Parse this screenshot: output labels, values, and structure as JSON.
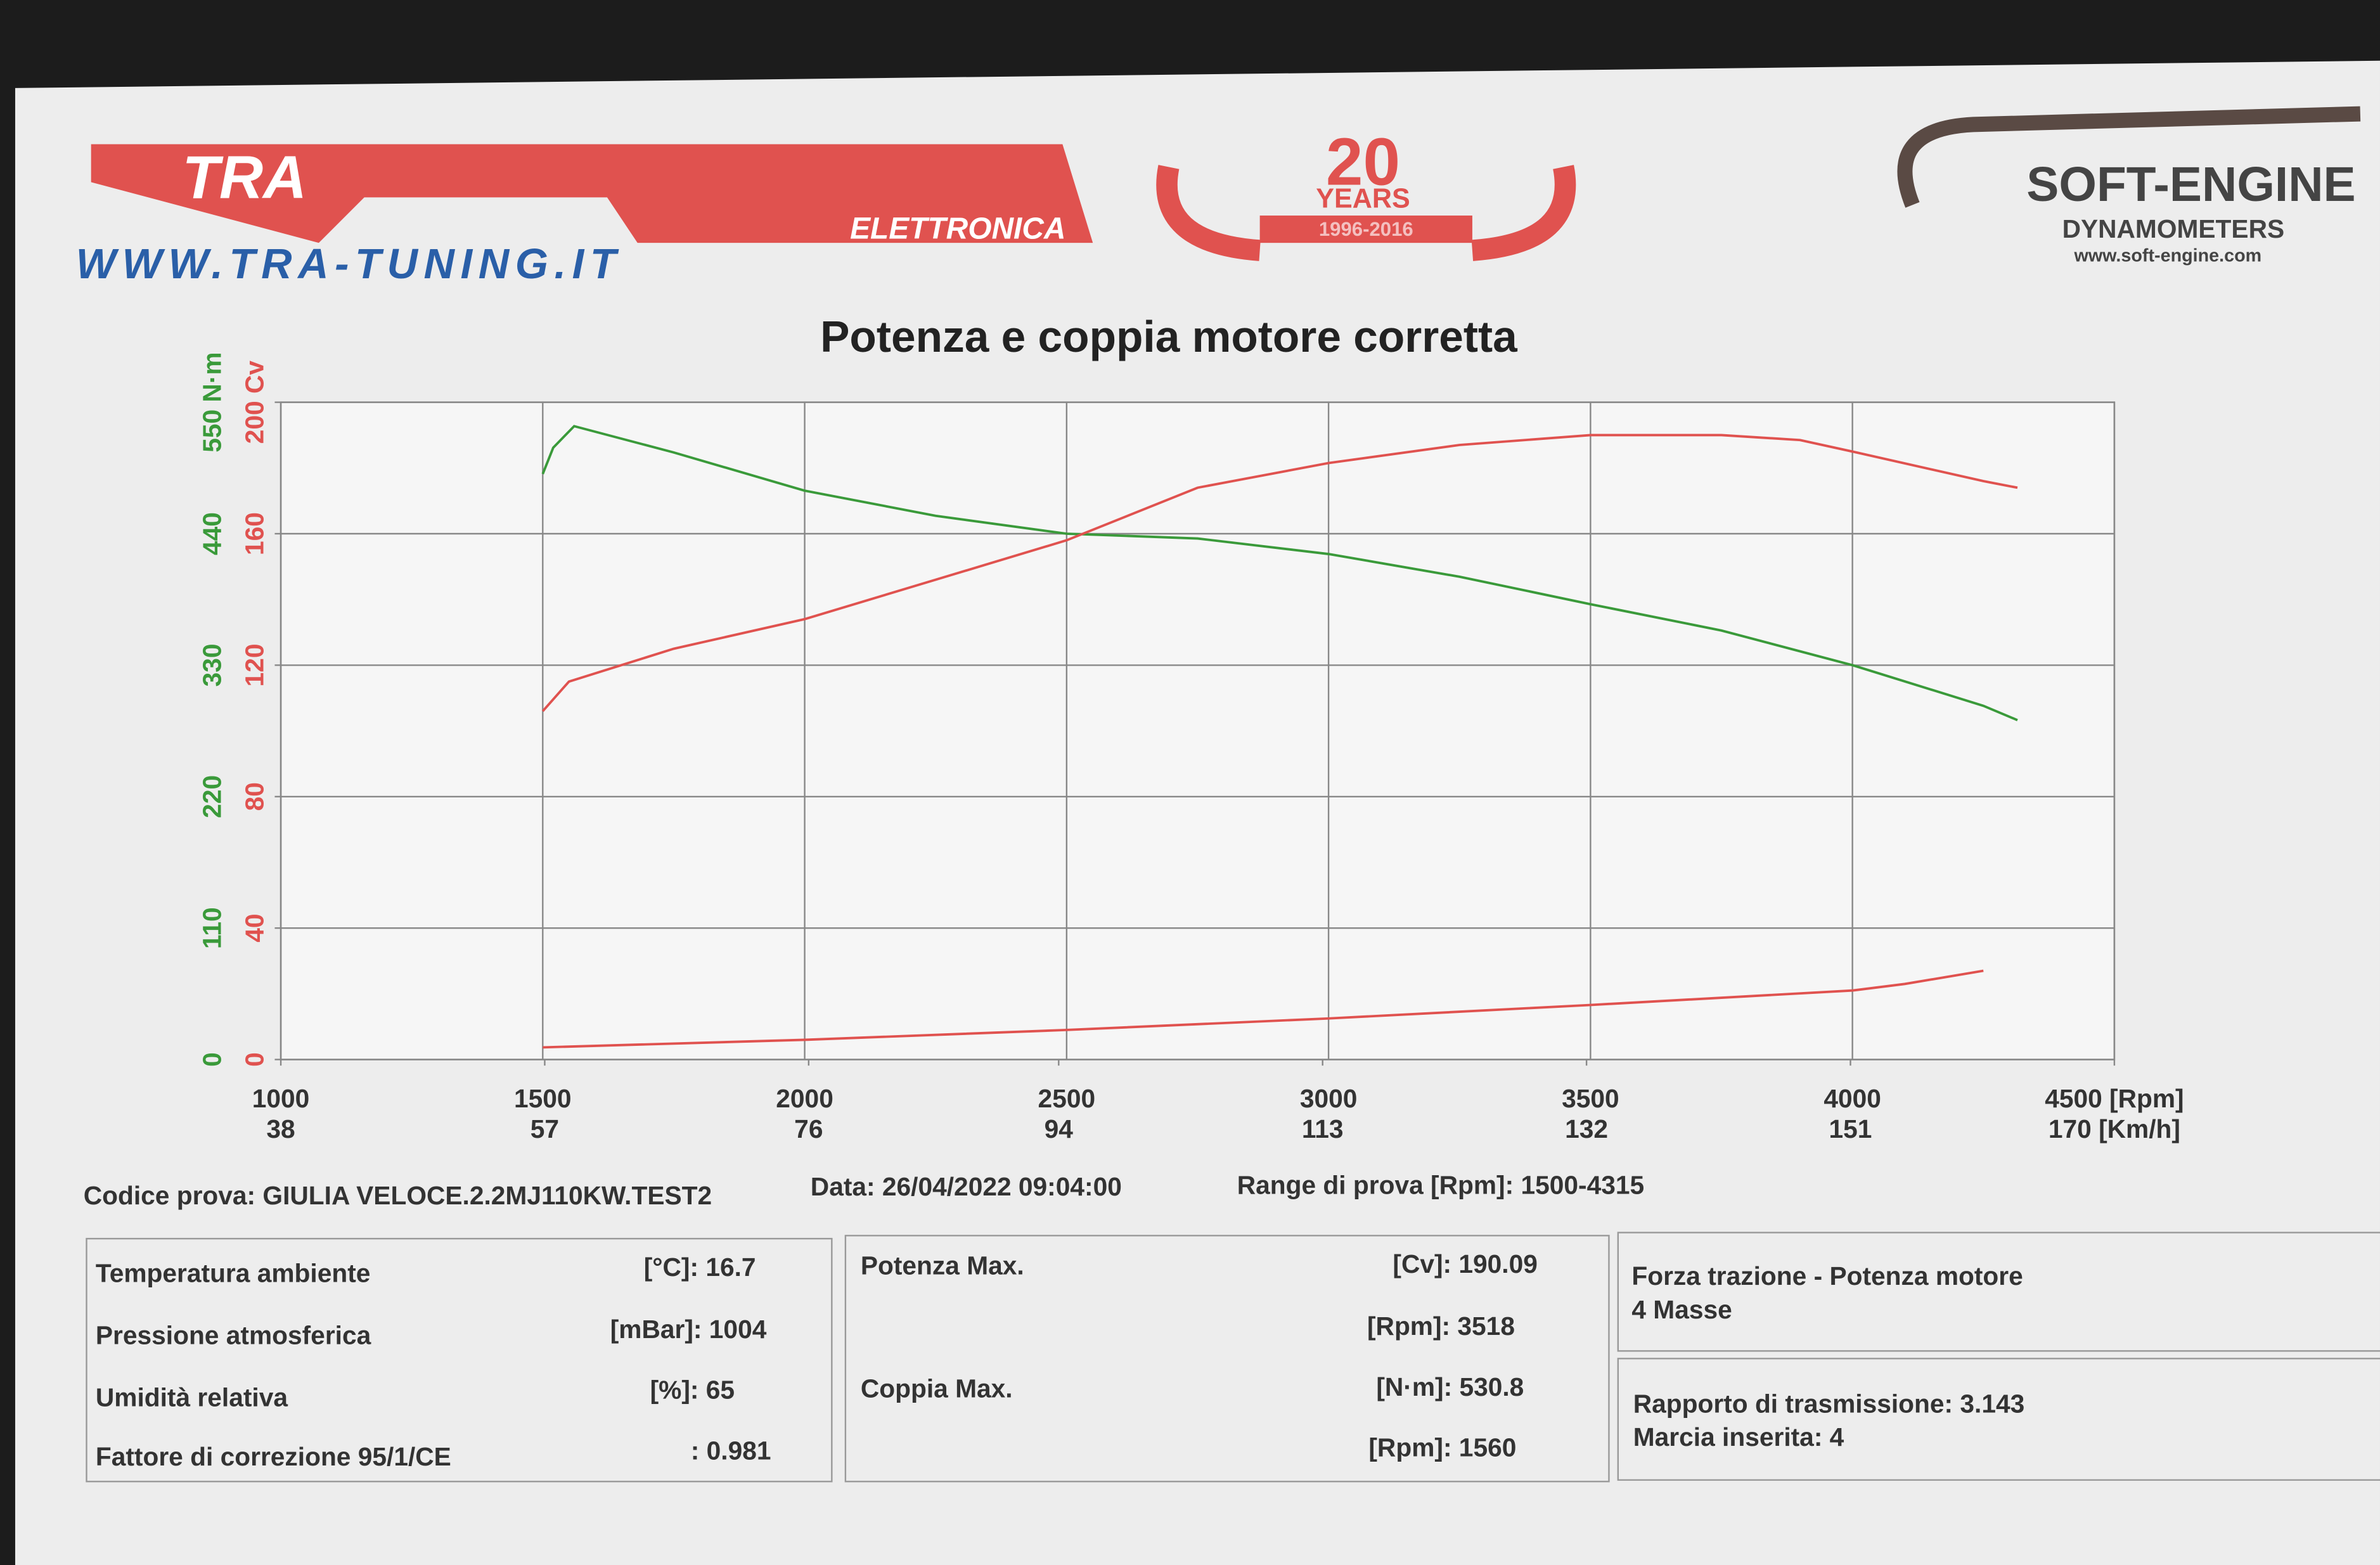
{
  "header": {
    "logo_left": "TRA",
    "logo_left_sub": "ELETTRONICA",
    "website": "WWW.TRA-TUNING.IT",
    "anniversary": "20",
    "anniversary_word": "YEARS",
    "anniversary_years": "1996-2016",
    "logo_right": "SOFT-ENGINE",
    "logo_right_sub": "DYNAMOMETERS",
    "logo_right_url": "www.soft-engine.com"
  },
  "chart_data": {
    "type": "line",
    "title": "Potenza e coppia motore corretta",
    "xlim": [
      1000,
      4500
    ],
    "xticks": [
      1000,
      1500,
      2000,
      2500,
      3000,
      3500,
      4000,
      {
        "value": 4500,
        "label": "4500 [Rpm]"
      }
    ],
    "x2lim": [
      38,
      170
    ],
    "x2ticks": [
      38,
      57,
      76,
      94,
      113,
      132,
      151,
      {
        "value": 170,
        "label": "170 [Km/h]"
      }
    ],
    "ylim": [
      0,
      550
    ],
    "yticks": [
      0,
      110,
      220,
      330,
      440,
      {
        "value": 550,
        "label": "550 N·m"
      }
    ],
    "ycolor": "#3a9a3a",
    "y2lim": [
      0,
      200
    ],
    "y2ticks": [
      0,
      40,
      80,
      120,
      160,
      {
        "value": 200,
        "label": "200 Cv"
      }
    ],
    "y2color": "#e0524f",
    "grid": true,
    "series": [
      {
        "color": "#3a9a3a",
        "axis": "y",
        "x": [
          1500,
          1520,
          1560,
          1750,
          2000,
          2250,
          2500,
          2750,
          3000,
          3250,
          3500,
          3750,
          4000,
          4250,
          4315
        ],
        "values": [
          490,
          512,
          530,
          508,
          476,
          455,
          440,
          436,
          423,
          404,
          381,
          359,
          330,
          296,
          284
        ]
      },
      {
        "color": "#e0524f",
        "axis": "y2",
        "x": [
          1500,
          1550,
          1750,
          2000,
          2250,
          2500,
          2750,
          3000,
          3250,
          3500,
          3750,
          3900,
          4000,
          4250,
          4315
        ],
        "values": [
          106,
          115,
          125,
          134,
          146,
          158,
          174,
          181.5,
          187,
          190,
          190,
          188.5,
          185,
          176,
          174
        ]
      },
      {
        "color": "#e0524f",
        "axis": "y2",
        "x": [
          1500,
          2000,
          2500,
          3000,
          3500,
          4000,
          4100,
          4250
        ],
        "values": [
          3.7,
          6,
          9,
          12.5,
          16.6,
          21,
          23,
          27
        ]
      }
    ]
  },
  "test_info": {
    "code": "Codice prova: GIULIA VELOCE.2.2MJ110KW.TEST2",
    "date": "Data: 26/04/2022 09:04:00",
    "range": "Range di prova [Rpm]: 1500-4315"
  },
  "conditions": [
    {
      "label": "Temperatura ambiente",
      "value": "[°C]: 16.7"
    },
    {
      "label": "Pressione atmosferica",
      "value": "[mBar]: 1004"
    },
    {
      "label": "Umidità relativa",
      "value": "[%]: 65"
    },
    {
      "label": "Fattore di correzione 95/1/CE",
      "value": ": 0.981"
    }
  ],
  "maxima": [
    {
      "label": "Potenza Max.",
      "value": "[Cv]: 190.09",
      "rpm": "[Rpm]: 3518"
    },
    {
      "label": "Coppia Max.",
      "value": "[N·m]: 530.8",
      "rpm": "[Rpm]: 1560"
    }
  ],
  "mode": {
    "title": "Forza trazione - Potenza motore",
    "masses": "4 Masse",
    "ratio": "Rapporto di trasmissione: 3.143",
    "gear": "Marcia inserita: 4"
  }
}
